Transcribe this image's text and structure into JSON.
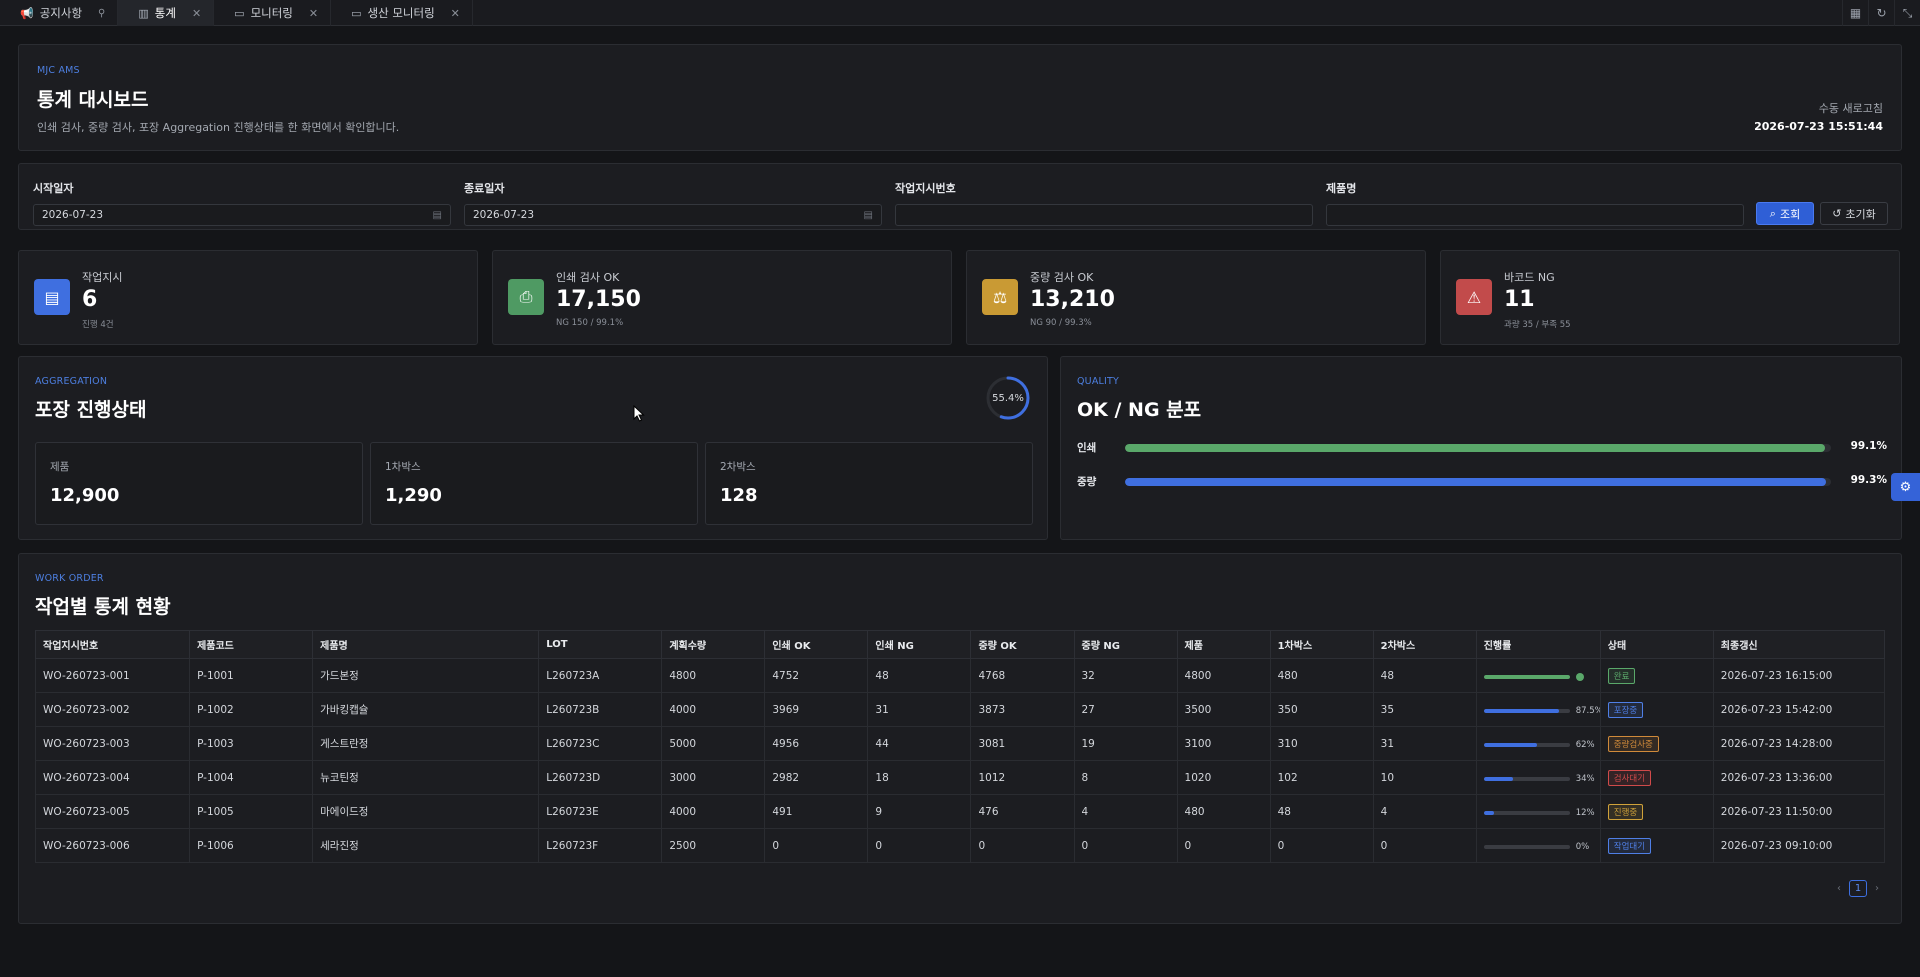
{
  "tabs": [
    {
      "label": "공지사항",
      "icon": "megaphone-icon",
      "pinned": true
    },
    {
      "label": "통계",
      "icon": "chart-icon",
      "active": true
    },
    {
      "label": "모니터링",
      "icon": "monitor-icon"
    },
    {
      "label": "생산 모니터링",
      "icon": "monitor-icon"
    }
  ],
  "header": {
    "eyebrow": "MJC AMS",
    "title": "통계 대시보드",
    "description": "인쇄 검사, 중량 검사, 포장 Aggregation 진행상태를 한 화면에서 확인합니다.",
    "refresh_label": "수동 새로고침",
    "refresh_time": "2026-07-23 15:51:44"
  },
  "filter": {
    "start_label": "시작일자",
    "start_value": "2026-07-23",
    "end_label": "종료일자",
    "end_value": "2026-07-23",
    "wo_label": "작업지시번호",
    "wo_value": "",
    "product_label": "제품명",
    "product_value": "",
    "search_btn": "조회",
    "reset_btn": "초기화"
  },
  "stats": [
    {
      "label": "작업지시",
      "value": "6",
      "sub": "진행 4건",
      "icon": "clipboard-icon",
      "color": "#3f6fe0"
    },
    {
      "label": "인쇄 검사 OK",
      "value": "17,150",
      "sub": "NG 150 / 99.1%",
      "icon": "printer-icon",
      "color": "#4f9a63"
    },
    {
      "label": "중량 검사 OK",
      "value": "13,210",
      "sub": "NG 90 / 99.3%",
      "icon": "scale-icon",
      "color": "#c99a34"
    },
    {
      "label": "바코드 NG",
      "value": "11",
      "sub": "과량 35 / 부족 55",
      "icon": "warning-icon",
      "color": "#c24b4b"
    }
  ],
  "aggregation": {
    "eyebrow": "AGGREGATION",
    "title": "포장 진행상태",
    "progress_label": "55.4%",
    "progress": 0.554,
    "boxes": [
      {
        "label": "제품",
        "value": "12,900"
      },
      {
        "label": "1차박스",
        "value": "1,290"
      },
      {
        "label": "2차박스",
        "value": "128"
      }
    ]
  },
  "quality": {
    "eyebrow": "QUALITY",
    "title": "OK / NG 분포",
    "rows": [
      {
        "label": "인쇄",
        "value": "99.1%",
        "ratio": 0.991,
        "color": "#5aa86a"
      },
      {
        "label": "중량",
        "value": "99.3%",
        "ratio": 0.993,
        "color": "#3f6fe0"
      }
    ]
  },
  "work_orders": {
    "eyebrow": "WORK ORDER",
    "title": "작업별 통계 현황",
    "columns": [
      "작업지시번호",
      "제품코드",
      "제품명",
      "LOT",
      "계획수량",
      "인쇄 OK",
      "인쇄 NG",
      "중량 OK",
      "중량 NG",
      "제품",
      "1차박스",
      "2차박스",
      "진행률",
      "상태",
      "최종갱신"
    ],
    "rows": [
      {
        "wo": "WO-260723-001",
        "code": "P-1001",
        "name": "가드본정",
        "lot": "L260723A",
        "plan": "4800",
        "print_ok": "4752",
        "print_ng": "48",
        "weight_ok": "4768",
        "weight_ng": "32",
        "product": "4800",
        "box1": "480",
        "box2": "48",
        "progress": 1.0,
        "progress_label": "",
        "status": "완료",
        "updated": "2026-07-23 16:15:00"
      },
      {
        "wo": "WO-260723-002",
        "code": "P-1002",
        "name": "가바킹캡슐",
        "lot": "L260723B",
        "plan": "4000",
        "print_ok": "3969",
        "print_ng": "31",
        "weight_ok": "3873",
        "weight_ng": "27",
        "product": "3500",
        "box1": "350",
        "box2": "35",
        "progress": 0.875,
        "progress_label": "87.5%",
        "status": "포장중",
        "updated": "2026-07-23 15:42:00"
      },
      {
        "wo": "WO-260723-003",
        "code": "P-1003",
        "name": "게스트란정",
        "lot": "L260723C",
        "plan": "5000",
        "print_ok": "4956",
        "print_ng": "44",
        "weight_ok": "3081",
        "weight_ng": "19",
        "product": "3100",
        "box1": "310",
        "box2": "31",
        "progress": 0.62,
        "progress_label": "62%",
        "status": "중량검사중",
        "updated": "2026-07-23 14:28:00"
      },
      {
        "wo": "WO-260723-004",
        "code": "P-1004",
        "name": "뉴코틴정",
        "lot": "L260723D",
        "plan": "3000",
        "print_ok": "2982",
        "print_ng": "18",
        "weight_ok": "1012",
        "weight_ng": "8",
        "product": "1020",
        "box1": "102",
        "box2": "10",
        "progress": 0.34,
        "progress_label": "34%",
        "status": "검사대기",
        "updated": "2026-07-23 13:36:00"
      },
      {
        "wo": "WO-260723-005",
        "code": "P-1005",
        "name": "마에이드정",
        "lot": "L260723E",
        "plan": "4000",
        "print_ok": "491",
        "print_ng": "9",
        "weight_ok": "476",
        "weight_ng": "4",
        "product": "480",
        "box1": "48",
        "box2": "4",
        "progress": 0.12,
        "progress_label": "12%",
        "status": "진행중",
        "updated": "2026-07-23 11:50:00"
      },
      {
        "wo": "WO-260723-006",
        "code": "P-1006",
        "name": "세라진정",
        "lot": "L260723F",
        "plan": "2500",
        "print_ok": "0",
        "print_ng": "0",
        "weight_ok": "0",
        "weight_ng": "0",
        "product": "0",
        "box1": "0",
        "box2": "0",
        "progress": 0.0,
        "progress_label": "0%",
        "status": "작업대기",
        "updated": "2026-07-23 09:10:00"
      }
    ],
    "status_colors": {
      "완료": "#5aa86a",
      "포장중": "#4f7fe6",
      "중량검사중": "#d08a3a",
      "검사대기": "#d04a4a",
      "진행중": "#d0a23a",
      "작업대기": "#4f7fe6"
    },
    "pager": {
      "current": "1"
    }
  }
}
